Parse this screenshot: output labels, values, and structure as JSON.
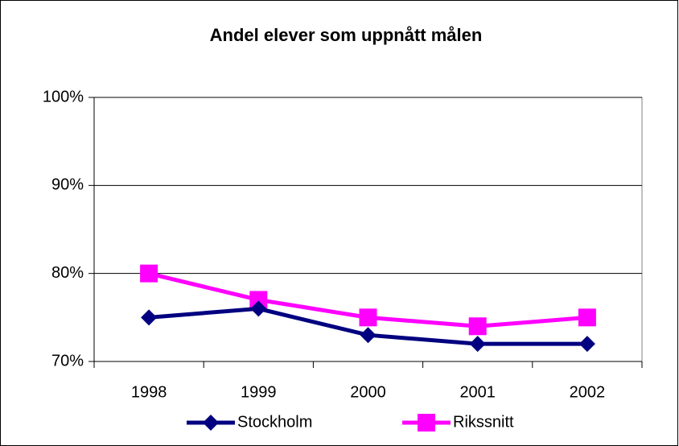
{
  "chart_data": {
    "type": "line",
    "title": "Andel elever som uppnått målen",
    "categories": [
      "1998",
      "1999",
      "2000",
      "2001",
      "2002"
    ],
    "series": [
      {
        "name": "Stockholm",
        "color": "#000080",
        "marker": "diamond",
        "values": [
          75,
          76,
          73,
          72,
          72
        ]
      },
      {
        "name": "Rikssnitt",
        "color": "#ff00ff",
        "marker": "square",
        "values": [
          80,
          77,
          75,
          74,
          75
        ]
      }
    ],
    "ylim": [
      70,
      100
    ],
    "yticks": [
      {
        "value": 70,
        "label": "70%"
      },
      {
        "value": 80,
        "label": "80%"
      },
      {
        "value": 90,
        "label": "90%"
      },
      {
        "value": 100,
        "label": "100%"
      }
    ],
    "grid": true,
    "legend": "bottom"
  }
}
